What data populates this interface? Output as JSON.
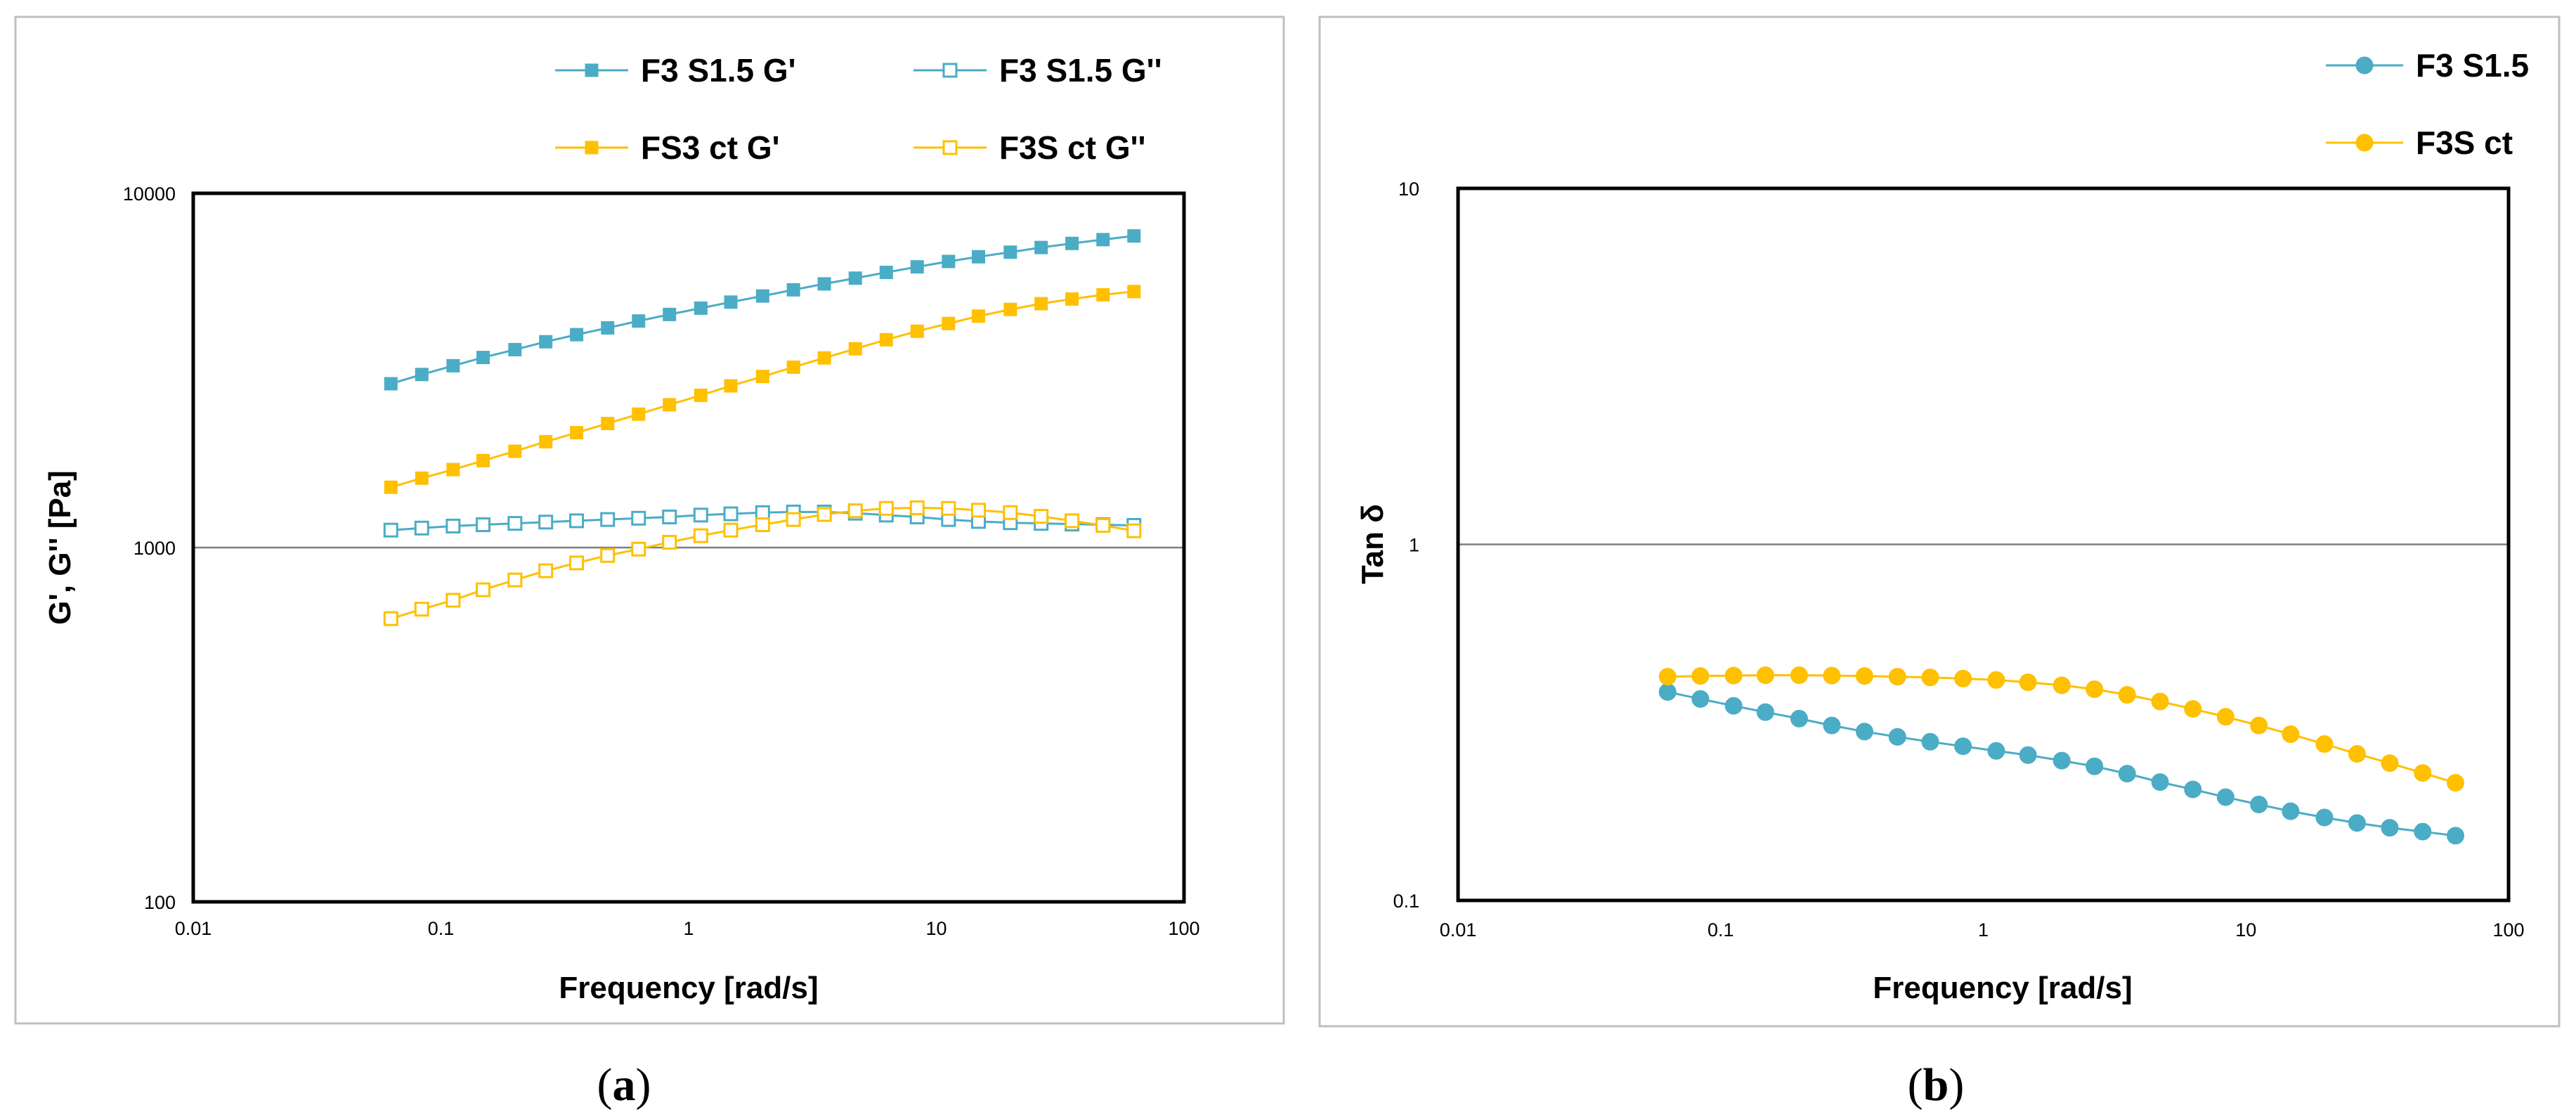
{
  "colors": {
    "teal": "#4bacc6",
    "gold": "#ffc000"
  },
  "chart_data": [
    {
      "panel": "a",
      "panel_label": "a",
      "type": "line",
      "xscale": "log",
      "yscale": "log",
      "xlabel": "Frequency [rad/s]",
      "ylabel": "G', G'' [Pa]",
      "xlim": [
        0.01,
        100
      ],
      "ylim": [
        100,
        10000
      ],
      "xticks": [
        "0.01",
        "0.1",
        "1",
        "10",
        "100"
      ],
      "yticks": [
        "100",
        "1000",
        "10000"
      ],
      "grid_major_y": true,
      "legend_position": "top",
      "x": [
        0.0628,
        0.0837,
        0.112,
        0.148,
        0.199,
        0.265,
        0.353,
        0.471,
        0.628,
        0.837,
        1.12,
        1.48,
        1.99,
        2.65,
        3.53,
        4.71,
        6.28,
        8.37,
        11.2,
        14.8,
        19.9,
        26.5,
        35.3,
        47.1,
        62.8
      ],
      "series": [
        {
          "name": "F3 S1.5 G'",
          "color": "#4bacc6",
          "marker": "filled-square",
          "values": [
            2900,
            3080,
            3260,
            3440,
            3620,
            3810,
            3990,
            4170,
            4360,
            4550,
            4740,
            4930,
            5130,
            5340,
            5550,
            5760,
            5980,
            6200,
            6420,
            6620,
            6820,
            7030,
            7220,
            7400,
            7580
          ]
        },
        {
          "name": "F3 S1.5 G''",
          "color": "#4bacc6",
          "marker": "open-square",
          "values": [
            1120,
            1135,
            1150,
            1160,
            1170,
            1180,
            1190,
            1200,
            1210,
            1220,
            1235,
            1245,
            1255,
            1260,
            1260,
            1250,
            1235,
            1220,
            1200,
            1185,
            1175,
            1170,
            1165,
            1160,
            1155
          ]
        },
        {
          "name": "FS3 ct G'",
          "color": "#ffc000",
          "marker": "filled-square",
          "values": [
            1480,
            1570,
            1660,
            1760,
            1870,
            1990,
            2110,
            2240,
            2380,
            2530,
            2690,
            2860,
            3040,
            3230,
            3430,
            3640,
            3860,
            4080,
            4290,
            4500,
            4700,
            4880,
            5030,
            5170,
            5280
          ]
        },
        {
          "name": "F3S ct G''",
          "color": "#ffc000",
          "marker": "open-square",
          "values": [
            630,
            670,
            710,
            760,
            810,
            860,
            905,
            950,
            990,
            1035,
            1080,
            1120,
            1160,
            1200,
            1240,
            1270,
            1290,
            1295,
            1290,
            1275,
            1255,
            1225,
            1190,
            1155,
            1115
          ]
        }
      ]
    },
    {
      "panel": "b",
      "panel_label": "b",
      "type": "line",
      "xscale": "log",
      "yscale": "log",
      "xlabel": "Frequency [rad/s]",
      "ylabel": "Tan δ",
      "xlim": [
        0.01,
        100
      ],
      "ylim": [
        0.1,
        10
      ],
      "xticks": [
        "0.01",
        "0.1",
        "1",
        "10",
        "100"
      ],
      "yticks": [
        "0.1",
        "1",
        "10"
      ],
      "grid_major_y": true,
      "legend_position": "top-right",
      "x": [
        0.0628,
        0.0837,
        0.112,
        0.148,
        0.199,
        0.265,
        0.353,
        0.471,
        0.628,
        0.837,
        1.12,
        1.48,
        1.99,
        2.65,
        3.53,
        4.71,
        6.28,
        8.37,
        11.2,
        14.8,
        19.9,
        26.5,
        35.3,
        47.1,
        62.8
      ],
      "series": [
        {
          "name": "F3 S1.5",
          "color": "#4bacc6",
          "marker": "filled-circle",
          "values": [
            0.385,
            0.368,
            0.352,
            0.338,
            0.324,
            0.31,
            0.298,
            0.288,
            0.279,
            0.271,
            0.263,
            0.256,
            0.247,
            0.238,
            0.227,
            0.215,
            0.205,
            0.195,
            0.186,
            0.178,
            0.171,
            0.165,
            0.16,
            0.156,
            0.152
          ]
        },
        {
          "name": "F3S ct",
          "color": "#ffc000",
          "marker": "filled-circle",
          "values": [
            0.425,
            0.427,
            0.428,
            0.429,
            0.429,
            0.428,
            0.427,
            0.425,
            0.423,
            0.42,
            0.416,
            0.41,
            0.402,
            0.392,
            0.378,
            0.362,
            0.345,
            0.328,
            0.31,
            0.293,
            0.275,
            0.258,
            0.243,
            0.228,
            0.214
          ]
        }
      ]
    }
  ]
}
